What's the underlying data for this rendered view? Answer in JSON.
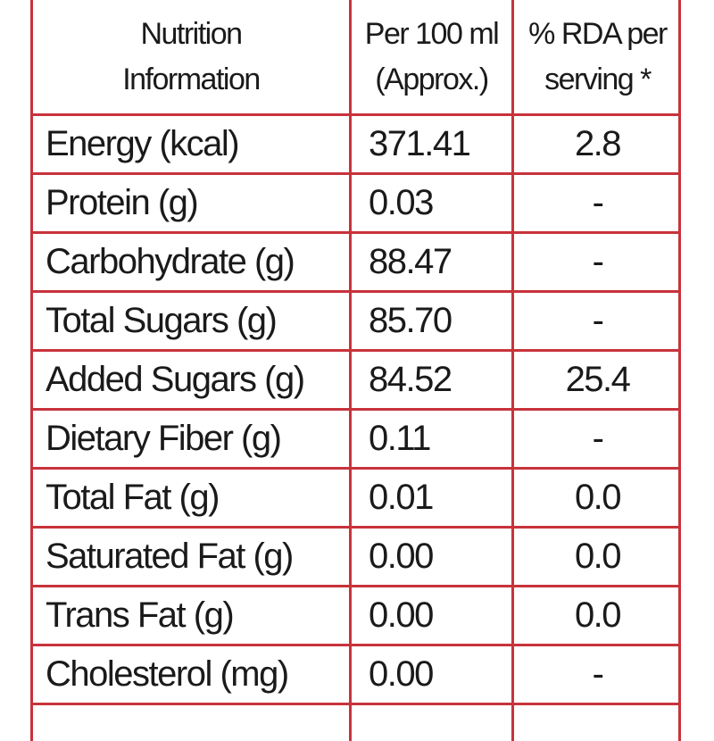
{
  "header": {
    "col1_line1": "Nutrition",
    "col1_line2": "Information",
    "col2_line1": "Per 100 ml",
    "col2_line2": "(Approx.)",
    "col3_line1": "% RDA per",
    "col3_line2": "serving *"
  },
  "rows": [
    {
      "name": "Energy (kcal)",
      "per100": "371.41",
      "rda": "2.8"
    },
    {
      "name": "Protein (g)",
      "per100": "0.03",
      "rda": "-"
    },
    {
      "name": "Carbohydrate (g)",
      "per100": "88.47",
      "rda": "-"
    },
    {
      "name": "Total Sugars (g)",
      "per100": "85.70",
      "rda": "-"
    },
    {
      "name": "Added Sugars (g)",
      "per100": "84.52",
      "rda": "25.4"
    },
    {
      "name": "Dietary Fiber (g)",
      "per100": "0.11",
      "rda": "-"
    },
    {
      "name": "Total Fat (g)",
      "per100": "0.01",
      "rda": "0.0"
    },
    {
      "name": "Saturated Fat (g)",
      "per100": "0.00",
      "rda": "0.0"
    },
    {
      "name": "Trans Fat (g)",
      "per100": "0.00",
      "rda": "0.0"
    },
    {
      "name": "Cholesterol (mg)",
      "per100": "0.00",
      "rda": "-"
    }
  ],
  "colors": {
    "border": "#c8333b",
    "text": "#1a1a1a"
  }
}
